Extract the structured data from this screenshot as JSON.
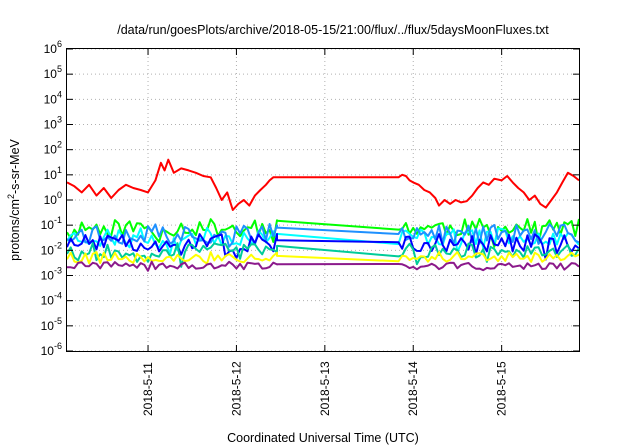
{
  "chart_data": {
    "type": "line",
    "title": "/data/run/goesPlots/archive/2018-05-15/21:00/flux/../flux/5daysMoonFluxes.txt",
    "xlabel": "Coordinated Universal Time (UTC)",
    "ylabel": "protons/cm2-s-sr-MeV",
    "ylabel_parts": {
      "before": "protons/cm",
      "sup": "2",
      "after": "-s-sr-MeV"
    },
    "y_scale": "log",
    "ylim": [
      1e-06,
      1000000.0
    ],
    "y_ticks": [
      {
        "value": 1e-06,
        "base": "10",
        "exp": "-6"
      },
      {
        "value": 1e-05,
        "base": "10",
        "exp": "-5"
      },
      {
        "value": 0.0001,
        "base": "10",
        "exp": "-4"
      },
      {
        "value": 0.001,
        "base": "10",
        "exp": "-3"
      },
      {
        "value": 0.01,
        "base": "10",
        "exp": "-2"
      },
      {
        "value": 0.1,
        "base": "10",
        "exp": "-1"
      },
      {
        "value": 1.0,
        "base": "10",
        "exp": "0"
      },
      {
        "value": 10.0,
        "base": "10",
        "exp": "1"
      },
      {
        "value": 100.0,
        "base": "10",
        "exp": "2"
      },
      {
        "value": 1000.0,
        "base": "10",
        "exp": "3"
      },
      {
        "value": 10000.0,
        "base": "10",
        "exp": "4"
      },
      {
        "value": 100000.0,
        "base": "10",
        "exp": "5"
      },
      {
        "value": 1000000.0,
        "base": "10",
        "exp": "6"
      }
    ],
    "xlim": [
      "2018-05-10T02:00",
      "2018-05-15T21:00"
    ],
    "x_ticks": [
      {
        "value": "2018-05-11T00:00",
        "label": "2018-5-11"
      },
      {
        "value": "2018-05-12T00:00",
        "label": "2018-5-12"
      },
      {
        "value": "2018-05-13T00:00",
        "label": "2018-5-13"
      },
      {
        "value": "2018-05-14T00:00",
        "label": "2018-5-14"
      },
      {
        "value": "2018-05-15T00:00",
        "label": "2018-5-15"
      }
    ],
    "grid": true,
    "series": [
      {
        "color": "#ff0000",
        "points": [
          [
            "2018-05-10T02:00",
            5
          ],
          [
            "2018-05-10T04:00",
            3.5
          ],
          [
            "2018-05-10T06:00",
            2
          ],
          [
            "2018-05-10T08:00",
            4
          ],
          [
            "2018-05-10T10:00",
            1.5
          ],
          [
            "2018-05-10T12:00",
            3
          ],
          [
            "2018-05-10T14:00",
            1.2
          ],
          [
            "2018-05-10T16:00",
            2.5
          ],
          [
            "2018-05-10T18:00",
            4
          ],
          [
            "2018-05-10T20:00",
            3
          ],
          [
            "2018-05-10T22:00",
            2.5
          ],
          [
            "2018-05-11T00:00",
            2
          ],
          [
            "2018-05-11T02:00",
            6
          ],
          [
            "2018-05-11T03:30",
            30
          ],
          [
            "2018-05-11T04:30",
            15
          ],
          [
            "2018-05-11T05:30",
            40
          ],
          [
            "2018-05-11T07:00",
            12
          ],
          [
            "2018-05-11T09:00",
            18
          ],
          [
            "2018-05-11T11:00",
            15
          ],
          [
            "2018-05-11T13:00",
            12
          ],
          [
            "2018-05-11T15:00",
            9
          ],
          [
            "2018-05-11T17:00",
            8
          ],
          [
            "2018-05-11T18:30",
            3
          ],
          [
            "2018-05-11T20:00",
            1
          ],
          [
            "2018-05-11T21:30",
            2
          ],
          [
            "2018-05-11T23:00",
            0.4
          ],
          [
            "2018-05-12T00:30",
            0.7
          ],
          [
            "2018-05-12T02:00",
            1
          ],
          [
            "2018-05-12T03:30",
            0.6
          ],
          [
            "2018-05-12T05:00",
            1.5
          ],
          [
            "2018-05-12T06:30",
            2.5
          ],
          [
            "2018-05-12T08:00",
            4
          ],
          [
            "2018-05-12T09:00",
            6
          ],
          [
            "2018-05-12T10:00",
            8
          ],
          [
            "2018-05-12T11:00",
            8
          ],
          [
            "2018-05-13T20:00",
            8
          ],
          [
            "2018-05-13T21:00",
            10
          ],
          [
            "2018-05-13T22:00",
            9
          ],
          [
            "2018-05-13T23:00",
            6
          ],
          [
            "2018-05-14T00:00",
            5
          ],
          [
            "2018-05-14T01:30",
            4
          ],
          [
            "2018-05-14T03:00",
            2.5
          ],
          [
            "2018-05-14T04:30",
            2
          ],
          [
            "2018-05-14T06:00",
            1.2
          ],
          [
            "2018-05-14T07:00",
            0.6
          ],
          [
            "2018-05-14T08:30",
            1
          ],
          [
            "2018-05-14T10:00",
            0.7
          ],
          [
            "2018-05-14T11:30",
            1
          ],
          [
            "2018-05-14T13:00",
            0.8
          ],
          [
            "2018-05-14T14:30",
            0.9
          ],
          [
            "2018-05-14T16:00",
            1.5
          ],
          [
            "2018-05-14T17:30",
            3
          ],
          [
            "2018-05-14T19:00",
            5
          ],
          [
            "2018-05-14T20:30",
            4
          ],
          [
            "2018-05-14T22:00",
            7
          ],
          [
            "2018-05-15T00:00",
            6
          ],
          [
            "2018-05-15T01:30",
            9
          ],
          [
            "2018-05-15T03:00",
            5
          ],
          [
            "2018-05-15T04:30",
            3
          ],
          [
            "2018-05-15T06:00",
            2
          ],
          [
            "2018-05-15T07:30",
            1
          ],
          [
            "2018-05-15T09:00",
            1.5
          ],
          [
            "2018-05-15T10:30",
            0.7
          ],
          [
            "2018-05-15T12:00",
            0.5
          ],
          [
            "2018-05-15T13:30",
            1
          ],
          [
            "2018-05-15T15:00",
            2
          ],
          [
            "2018-05-15T16:30",
            5
          ],
          [
            "2018-05-15T18:00",
            12
          ],
          [
            "2018-05-15T19:30",
            9
          ],
          [
            "2018-05-15T21:00",
            6
          ]
        ]
      },
      {
        "color": "#00ff00",
        "base": 0.08,
        "flat": 0.15,
        "jitter": 0.35,
        "seed": 11
      },
      {
        "color": "#00ffff",
        "base": 0.035,
        "flat": 0.045,
        "jitter": 0.35,
        "seed": 23
      },
      {
        "color": "#1e90ff",
        "base": 0.045,
        "flat": 0.08,
        "jitter": 0.4,
        "seed": 37
      },
      {
        "color": "#0000ff",
        "base": 0.02,
        "flat": 0.025,
        "jitter": 0.35,
        "seed": 51
      },
      {
        "color": "#00cc99",
        "base": 0.01,
        "flat": 0.015,
        "jitter": 0.3,
        "seed": 67
      },
      {
        "color": "#ffff00",
        "base": 0.0055,
        "flat": 0.006,
        "jitter": 0.2,
        "seed": 79
      },
      {
        "color": "#8b1a8b",
        "base": 0.0025,
        "flat": 0.0028,
        "jitter": 0.15,
        "seed": 93
      }
    ]
  }
}
